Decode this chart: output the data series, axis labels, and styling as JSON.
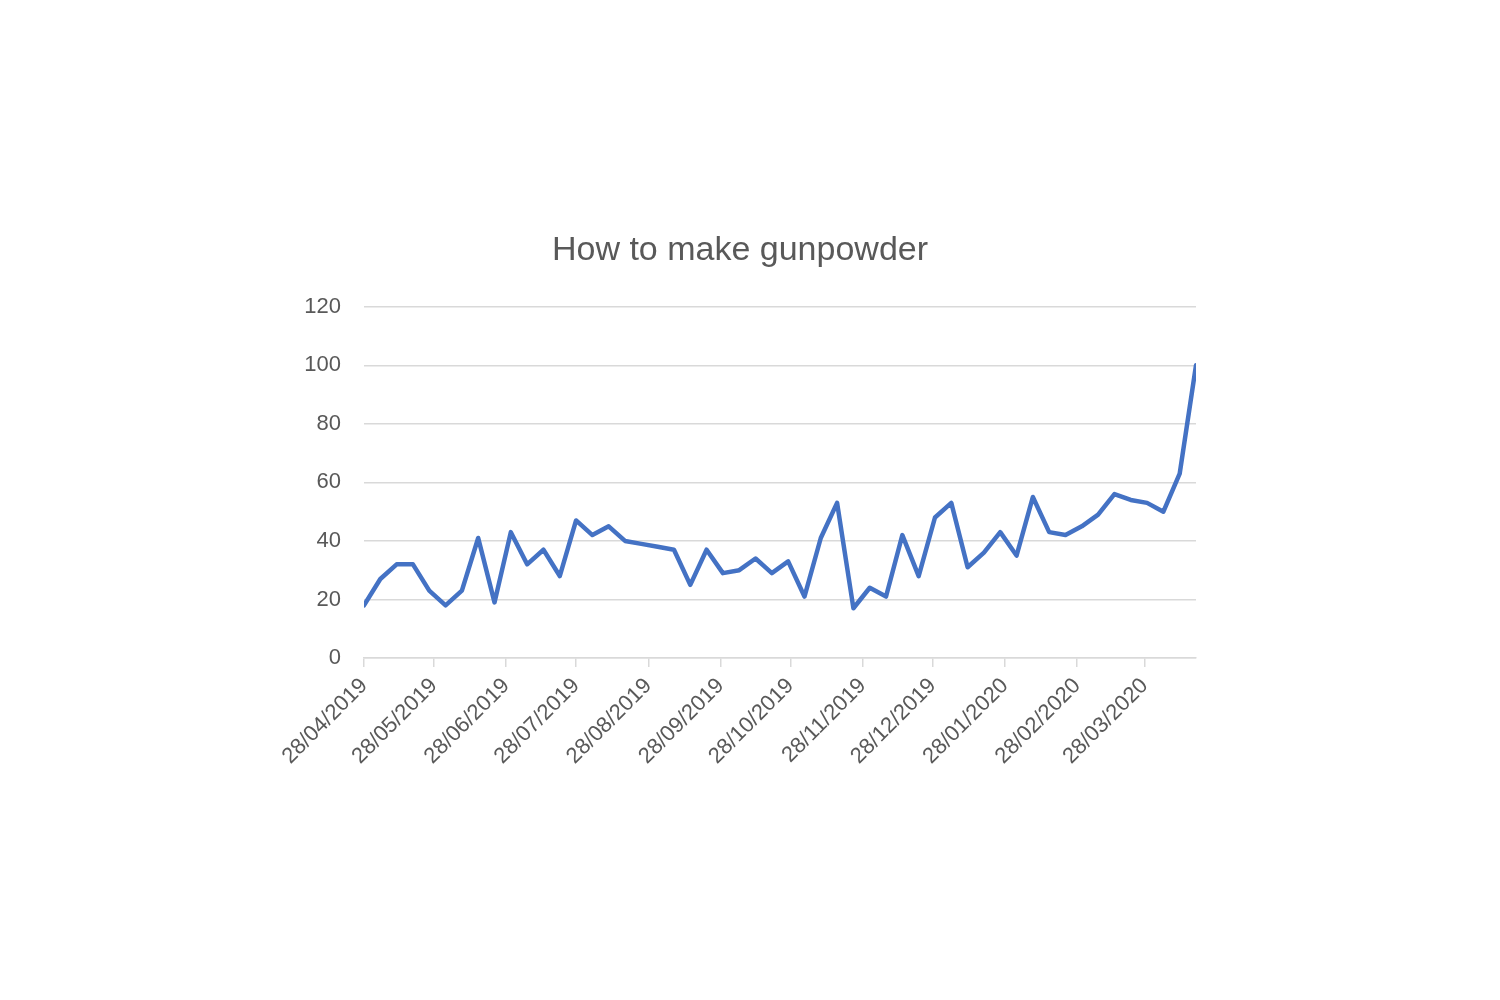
{
  "chart_data": {
    "type": "line",
    "title": "How to make gunpowder",
    "x": [
      "2019-04-28",
      "2019-05-05",
      "2019-05-12",
      "2019-05-19",
      "2019-05-26",
      "2019-06-02",
      "2019-06-09",
      "2019-06-16",
      "2019-06-23",
      "2019-06-30",
      "2019-07-07",
      "2019-07-14",
      "2019-07-21",
      "2019-07-28",
      "2019-08-04",
      "2019-08-11",
      "2019-08-18",
      "2019-08-25",
      "2019-09-01",
      "2019-09-08",
      "2019-09-15",
      "2019-09-22",
      "2019-09-29",
      "2019-10-06",
      "2019-10-13",
      "2019-10-20",
      "2019-10-27",
      "2019-11-03",
      "2019-11-10",
      "2019-11-17",
      "2019-11-24",
      "2019-12-01",
      "2019-12-08",
      "2019-12-15",
      "2019-12-22",
      "2019-12-29",
      "2020-01-05",
      "2020-01-12",
      "2020-01-19",
      "2020-01-26",
      "2020-02-02",
      "2020-02-09",
      "2020-02-16",
      "2020-02-23",
      "2020-03-01",
      "2020-03-08",
      "2020-03-15",
      "2020-03-22",
      "2020-03-29",
      "2020-04-05",
      "2020-04-12",
      "2020-04-19"
    ],
    "values": [
      18,
      27,
      32,
      32,
      23,
      18,
      23,
      41,
      19,
      43,
      32,
      37,
      28,
      47,
      42,
      45,
      40,
      39,
      38,
      37,
      25,
      37,
      29,
      30,
      34,
      29,
      33,
      21,
      41,
      53,
      17,
      24,
      21,
      42,
      28,
      48,
      53,
      31,
      36,
      43,
      35,
      55,
      43,
      42,
      45,
      49,
      56,
      54,
      53,
      50,
      63,
      100
    ],
    "color": "#4472c4",
    "marker": "none",
    "line_style": "solid",
    "xlim": [
      "2019-04-28",
      "2020-04-19"
    ],
    "xticks": [
      {
        "value": "2019-04-28",
        "label": "28/04/2019"
      },
      {
        "value": "2019-05-28",
        "label": "28/05/2019"
      },
      {
        "value": "2019-06-28",
        "label": "28/06/2019"
      },
      {
        "value": "2019-07-28",
        "label": "28/07/2019"
      },
      {
        "value": "2019-08-28",
        "label": "28/08/2019"
      },
      {
        "value": "2019-09-28",
        "label": "28/09/2019"
      },
      {
        "value": "2019-10-28",
        "label": "28/10/2019"
      },
      {
        "value": "2019-11-28",
        "label": "28/11/2019"
      },
      {
        "value": "2019-12-28",
        "label": "28/12/2019"
      },
      {
        "value": "2020-01-28",
        "label": "28/01/2020"
      },
      {
        "value": "2020-02-28",
        "label": "28/02/2020"
      },
      {
        "value": "2020-03-28",
        "label": "28/03/2020"
      }
    ],
    "ylim": [
      0,
      120
    ],
    "yticks": [
      0,
      20,
      40,
      60,
      80,
      100,
      120
    ],
    "grid": "y",
    "legend": false
  }
}
